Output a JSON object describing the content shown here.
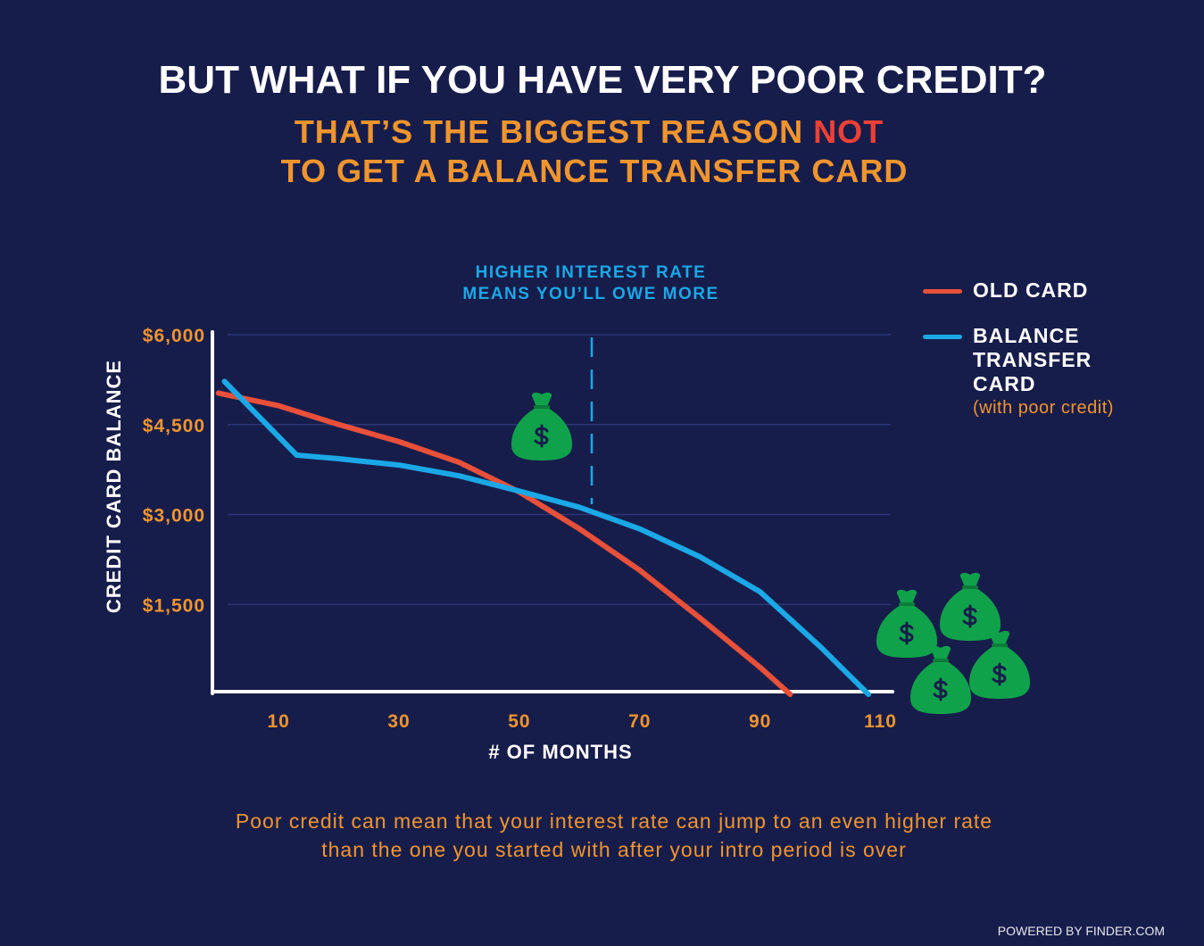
{
  "chart_data": {
    "type": "line",
    "title": "BUT WHAT IF YOU HAVE VERY POOR CREDIT?",
    "subtitle_start": "THAT’S THE BIGGEST REASON ",
    "subtitle_emphasis": "NOT",
    "subtitle_end": "TO GET A BALANCE TRANSFER CARD",
    "annotation": [
      "HIGHER INTEREST RATE",
      "MEANS YOU’LL OWE MORE"
    ],
    "y_label": "CREDIT CARD BALANCE",
    "x_label": "# OF MONTHS",
    "caption": [
      "Poor credit can mean that your interest rate can jump to an even higher rate",
      "than the one you started with after your intro period is over"
    ],
    "footer": "POWERED BY FINDER.COM",
    "legend_position": "right",
    "legend_note": "(with poor credit)",
    "grid": true,
    "xlim": [
      -1,
      112
    ],
    "xticks": [
      10,
      30,
      50,
      70,
      90,
      110
    ],
    "ylim": [
      0,
      6000
    ],
    "yticks": [
      {
        "value": 1500,
        "label": "$1,500"
      },
      {
        "value": 3000,
        "label": "$3,000"
      },
      {
        "value": 4500,
        "label": "$4,500"
      },
      {
        "value": 6000,
        "label": "$6,000"
      }
    ],
    "series": [
      {
        "name": "OLD CARD",
        "color": "#e8503a",
        "x": [
          0,
          10,
          20,
          30,
          40,
          50,
          60,
          70,
          80,
          90,
          95
        ],
        "values": [
          5025,
          4815,
          4500,
          4215,
          3870,
          3375,
          2760,
          2070,
          1275,
          450,
          0
        ]
      },
      {
        "name": "BALANCE TRANSFER CARD",
        "color": "#1ba8e6",
        "x": [
          1,
          13,
          20,
          30,
          40,
          50,
          60,
          70,
          80,
          90,
          100,
          108
        ],
        "values": [
          5220,
          3990,
          3930,
          3825,
          3645,
          3390,
          3120,
          2760,
          2295,
          1710,
          795,
          0
        ]
      }
    ]
  }
}
